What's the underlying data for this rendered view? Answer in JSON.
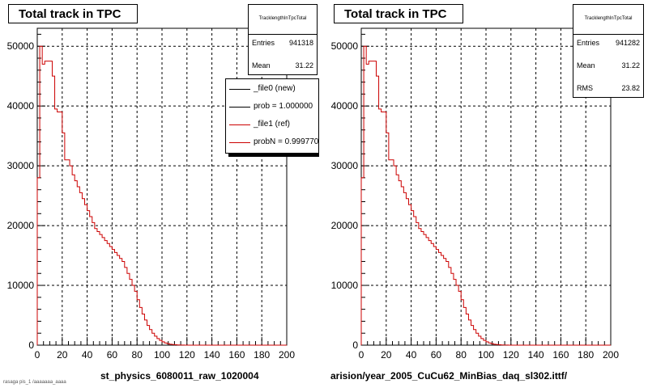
{
  "chart_data": [
    {
      "type": "line",
      "title": "Total track in TPC",
      "xlabel": "st_physics_6080011_raw_1020004",
      "ylabel": "",
      "xlim": [
        0,
        200
      ],
      "ylim": [
        0,
        53000
      ],
      "x_ticks": [
        0,
        20,
        40,
        60,
        80,
        100,
        120,
        140,
        160,
        180,
        200
      ],
      "y_ticks": [
        0,
        10000,
        20000,
        30000,
        40000,
        50000
      ],
      "y_tick_labels": [
        "0",
        "10000",
        "20000",
        "30000",
        "40000",
        "50000"
      ],
      "grid": true,
      "stats": {
        "name": "TracklengthInTpcTotal",
        "rows": [
          {
            "label": "Entries",
            "value": "941318"
          },
          {
            "label": "Mean",
            "value": "31.22"
          }
        ]
      },
      "legend": {
        "position": "top-right",
        "entries": [
          {
            "label": "_file0 (new)",
            "color": "#000000"
          },
          {
            "label": "prob = 1.000000",
            "color": "#000000"
          },
          {
            "label": "_file1 (ref)",
            "color": "#cc0000"
          },
          {
            "label": "probN = 0.999770",
            "color": "#cc0000"
          }
        ]
      },
      "series": [
        {
          "color": "#cc0000",
          "bin_width": 2,
          "values": [
            28000,
            50000,
            47000,
            47500,
            47500,
            47500,
            45000,
            39500,
            39000,
            39000,
            35500,
            31000,
            31000,
            30000,
            28500,
            27500,
            26500,
            25500,
            24500,
            23500,
            22500,
            21500,
            20500,
            19500,
            19000,
            18500,
            18000,
            17500,
            17000,
            16500,
            16000,
            15500,
            15000,
            14500,
            14000,
            13000,
            12000,
            11000,
            10000,
            9000,
            7600,
            6300,
            5200,
            4200,
            3300,
            2600,
            2000,
            1500,
            1100,
            800,
            550,
            380,
            250,
            160,
            100,
            60,
            35,
            20,
            10,
            5,
            2
          ]
        }
      ]
    },
    {
      "type": "line",
      "title": "Total track in TPC",
      "xlabel": "arision/year_2005_CuCu62_MinBias_daq_sl302.ittf/",
      "ylabel": "",
      "xlim": [
        0,
        200
      ],
      "ylim": [
        0,
        53000
      ],
      "x_ticks": [
        0,
        20,
        40,
        60,
        80,
        100,
        120,
        140,
        160,
        180,
        200
      ],
      "y_ticks": [
        0,
        10000,
        20000,
        30000,
        40000,
        50000
      ],
      "y_tick_labels": [
        "0",
        "10000",
        "20000",
        "30000",
        "40000",
        "50000"
      ],
      "grid": true,
      "stats": {
        "name": "TracklengthInTpcTotal",
        "rows": [
          {
            "label": "Entries",
            "value": "941282"
          },
          {
            "label": "Mean",
            "value": "31.22"
          },
          {
            "label": "RMS",
            "value": "23.82"
          }
        ]
      },
      "series": [
        {
          "color": "#cc0000",
          "bin_width": 2,
          "values": [
            28000,
            50000,
            47000,
            47500,
            47500,
            47500,
            45000,
            39500,
            39000,
            39000,
            35500,
            31000,
            31000,
            30000,
            28500,
            27500,
            26500,
            25500,
            24500,
            23500,
            22500,
            21500,
            20500,
            19500,
            19000,
            18500,
            18000,
            17500,
            17000,
            16500,
            16000,
            15500,
            15000,
            14500,
            14000,
            13000,
            12000,
            11000,
            10000,
            9000,
            7600,
            6300,
            5200,
            4200,
            3300,
            2600,
            2000,
            1500,
            1100,
            800,
            550,
            380,
            250,
            160,
            100,
            60,
            35,
            20,
            10,
            5,
            2
          ]
        }
      ]
    }
  ],
  "footer": "rasaga pis_1 /aaaaaaa_aaaa"
}
